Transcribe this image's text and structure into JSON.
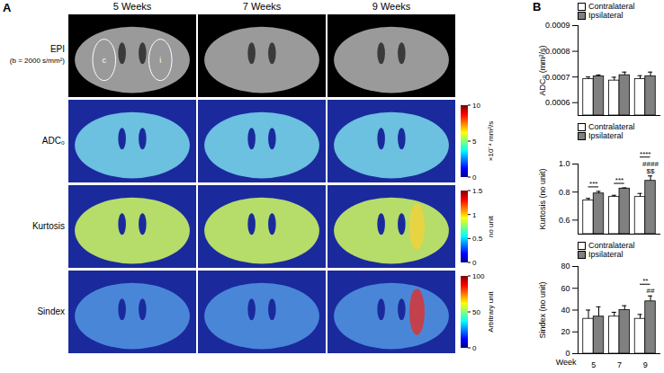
{
  "panels": {
    "a": {
      "letter": "A",
      "columns": [
        "5 Weeks",
        "7 Weeks",
        "9 Weeks"
      ],
      "rows": [
        {
          "label": "EPI",
          "sublabel": "(b = 2000 s/mm²)",
          "roi_labels": [
            "c",
            "i"
          ]
        },
        {
          "label": "ADC₀",
          "colorbar": {
            "range": [
              0,
              10
            ],
            "ticks": [
              0,
              5,
              10
            ],
            "label": "×10⁻⁴ mm²/s"
          }
        },
        {
          "label": "Kurtosis",
          "colorbar": {
            "range": [
              0,
              1.5
            ],
            "ticks": [
              0,
              0.5,
              1,
              1.5
            ],
            "label": "no unit"
          }
        },
        {
          "label": "Sindex",
          "colorbar": {
            "range": [
              0,
              100
            ],
            "ticks": [
              0,
              50,
              100
            ],
            "label": "Arbitrary unit"
          }
        }
      ]
    },
    "b": {
      "letter": "B"
    }
  },
  "chart_data": [
    {
      "type": "bar",
      "y_label": "ADC₀ (mm²/s)",
      "categories": [
        5,
        7,
        9
      ],
      "series": [
        {
          "name": "Contralateral",
          "color": "#ffffff",
          "values": [
            0.000692,
            0.000686,
            0.000692
          ],
          "errors": [
            8e-06,
            1.3e-05,
            1.3e-05
          ]
        },
        {
          "name": "Ipsilateral",
          "color": "#808080",
          "values": [
            0.000702,
            0.000707,
            0.000703
          ],
          "errors": [
            6e-06,
            1.2e-05,
            1.6e-05
          ]
        }
      ],
      "ylim": [
        0.00055,
        0.0009
      ],
      "yticks": [
        0.0006,
        0.0007,
        0.0008,
        0.0009
      ],
      "legend": "top-left",
      "tick_labels": "y",
      "annotations": []
    },
    {
      "type": "bar",
      "y_label": "Kurtosis (no unit)",
      "categories": [
        5,
        7,
        9
      ],
      "series": [
        {
          "name": "Contralateral",
          "color": "#ffffff",
          "values": [
            0.74,
            0.765,
            0.765
          ],
          "errors": [
            0.015,
            0.012,
            0.025
          ]
        },
        {
          "name": "Ipsilateral",
          "color": "#808080",
          "values": [
            0.79,
            0.825,
            0.88
          ],
          "errors": [
            0.015,
            0.005,
            0.035
          ]
        }
      ],
      "ylim": [
        0.5,
        1.0
      ],
      "yticks": [
        0.6,
        0.8,
        {
          "value": 1,
          "label": "1.0"
        }
      ],
      "legend": "top-left",
      "tick_labels": "y",
      "annotations": [
        {
          "text": "***",
          "category": 5,
          "series": [
            "Contralateral",
            "Ipsilateral"
          ]
        },
        {
          "text": "***",
          "category": 7,
          "series": [
            "Contralateral",
            "Ipsilateral"
          ]
        },
        {
          "text": "$$",
          "category": 9,
          "series": [
            "Ipsilateral"
          ]
        },
        {
          "text": "####",
          "category": 9,
          "series": [
            "Ipsilateral"
          ]
        },
        {
          "text": "****",
          "category": 9,
          "series": [
            "Contralateral",
            "Ipsilateral"
          ]
        }
      ]
    },
    {
      "type": "bar",
      "y_label": "Sindex (no unit)",
      "x_label": "Week",
      "categories": [
        5,
        7,
        9
      ],
      "series": [
        {
          "name": "Contralateral",
          "color": "#ffffff",
          "values": [
            32,
            34,
            32
          ],
          "errors": [
            8,
            4,
            4
          ]
        },
        {
          "name": "Ipsilateral",
          "color": "#808080",
          "values": [
            34,
            40,
            48
          ],
          "errors": [
            9,
            4,
            5
          ]
        }
      ],
      "ylim": [
        0,
        80
      ],
      "yticks": [
        0,
        20,
        40,
        60,
        80
      ],
      "legend": "top-left",
      "annotations": [
        {
          "text": "##",
          "category": 9,
          "series": [
            "Ipsilateral"
          ]
        },
        {
          "text": "**",
          "category": 9,
          "series": [
            "Contralateral",
            "Ipsilateral"
          ]
        }
      ]
    }
  ]
}
